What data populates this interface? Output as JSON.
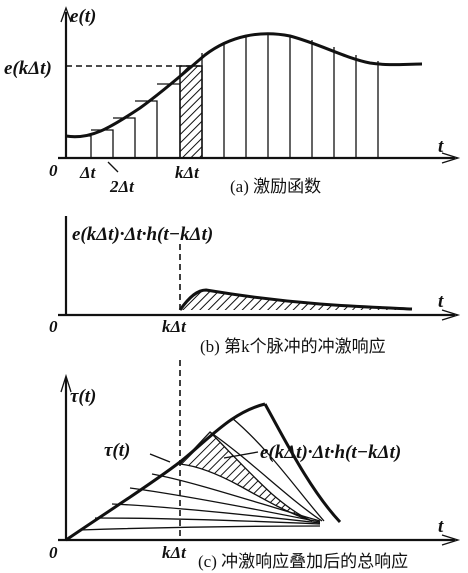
{
  "panel_a": {
    "y_label": "e(t)",
    "level_label": "e(kΔt)",
    "x_label": "t",
    "origin": "0",
    "tick_1": "Δt",
    "tick_2": "2Δt",
    "tick_k": "kΔt",
    "caption": "(a) 激励函数"
  },
  "panel_b": {
    "y_label": "e(kΔt)·Δt·h(t−kΔt)",
    "x_label": "t",
    "origin": "0",
    "tick_k": "kΔt",
    "caption": "(b) 第k个脉冲的冲激响应"
  },
  "panel_c": {
    "y_label": "τ(t)",
    "curve_label": "τ(t)",
    "term_label": "e(kΔt)·Δt·h(t−kΔt)",
    "x_label": "t",
    "origin": "0",
    "tick_k": "kΔt",
    "caption": "(c) 冲激响应叠加后的总响应"
  }
}
